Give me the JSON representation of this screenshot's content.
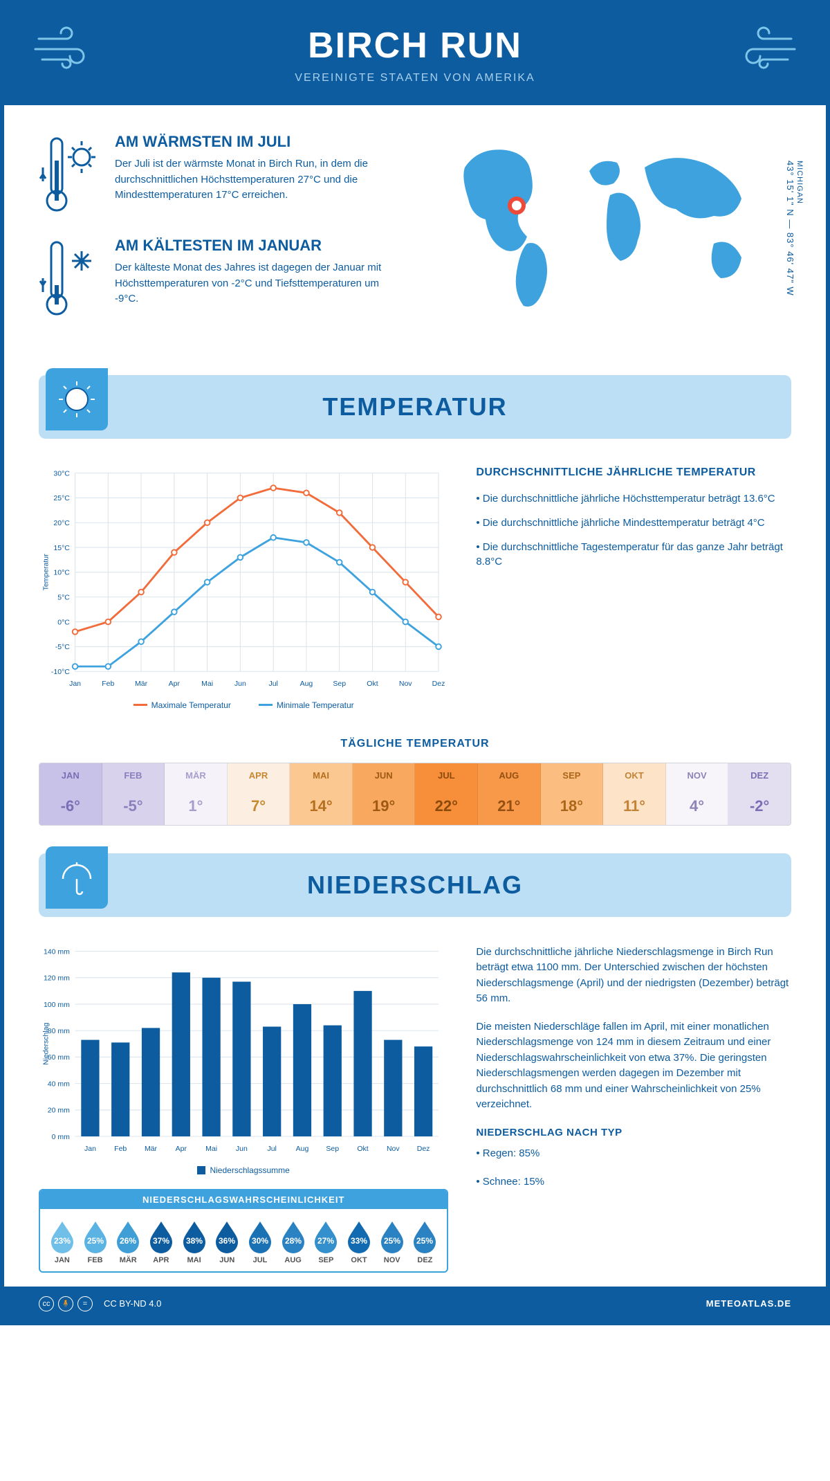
{
  "header": {
    "title": "BIRCH RUN",
    "subtitle": "VEREINIGTE STAATEN VON AMERIKA"
  },
  "intro": {
    "warm_title": "AM WÄRMSTEN IM JULI",
    "warm_text": "Der Juli ist der wärmste Monat in Birch Run, in dem die durchschnittlichen Höchsttemperaturen 27°C und die Mindesttemperaturen 17°C erreichen.",
    "cold_title": "AM KÄLTESTEN IM JANUAR",
    "cold_text": "Der kälteste Monat des Jahres ist dagegen der Januar mit Höchsttemperaturen von -2°C und Tiefsttemperaturen um -9°C.",
    "coords": "43° 15' 1\" N — 83° 46' 47\" W",
    "region": "MICHIGAN"
  },
  "months_short": [
    "Jan",
    "Feb",
    "Mär",
    "Apr",
    "Mai",
    "Jun",
    "Jul",
    "Aug",
    "Sep",
    "Okt",
    "Nov",
    "Dez"
  ],
  "months_upper": [
    "JAN",
    "FEB",
    "MÄR",
    "APR",
    "MAI",
    "JUN",
    "JUL",
    "AUG",
    "SEP",
    "OKT",
    "NOV",
    "DEZ"
  ],
  "temperature": {
    "banner": "TEMPERATUR",
    "side_title": "DURCHSCHNITTLICHE JÄHRLICHE TEMPERATUR",
    "bullet1": "• Die durchschnittliche jährliche Höchsttemperatur beträgt 13.6°C",
    "bullet2": "• Die durchschnittliche jährliche Mindesttemperatur beträgt 4°C",
    "bullet3": "• Die durchschnittliche Tagestemperatur für das ganze Jahr beträgt 8.8°C",
    "legend_max": "Maximale Temperatur",
    "legend_min": "Minimale Temperatur",
    "ylabel": "Temperatur",
    "ylim": [
      -10,
      30
    ],
    "ytick_step": 5,
    "max_series": [
      -2,
      0,
      6,
      14,
      20,
      25,
      27,
      26,
      22,
      15,
      8,
      1
    ],
    "min_series": [
      -9,
      -9,
      -4,
      2,
      8,
      13,
      17,
      16,
      12,
      6,
      0,
      -5
    ],
    "max_color": "#f26b3a",
    "min_color": "#3da2de",
    "grid_color": "#d8e2ea",
    "line_width": 3,
    "marker_size": 4
  },
  "daily_temp": {
    "title": "TÄGLICHE TEMPERATUR",
    "values": [
      "-6°",
      "-5°",
      "1°",
      "7°",
      "14°",
      "19°",
      "22°",
      "21°",
      "18°",
      "11°",
      "4°",
      "-2°"
    ],
    "bg_colors": [
      "#c8c2e8",
      "#d8d2ed",
      "#f5f2f9",
      "#fceee0",
      "#fbc891",
      "#f9a95f",
      "#f78f3a",
      "#f8994a",
      "#fbbd80",
      "#fde4c9",
      "#f7f5f9",
      "#e3def0"
    ],
    "txt_colors": [
      "#7a6fb5",
      "#8a80bd",
      "#a69ecc",
      "#c8882f",
      "#b56f1e",
      "#9e5a14",
      "#8b4a0c",
      "#945012",
      "#ab6619",
      "#c28335",
      "#8c84b8",
      "#7a6fb5"
    ]
  },
  "precip": {
    "banner": "NIEDERSCHLAG",
    "ylabel": "Niederschlag",
    "ylim": [
      0,
      140
    ],
    "ytick_step": 20,
    "values": [
      73,
      71,
      82,
      124,
      120,
      117,
      83,
      100,
      84,
      110,
      73,
      68
    ],
    "bar_color": "#0d5ca0",
    "grid_color": "#d8e2ea",
    "legend": "Niederschlagssumme",
    "para1": "Die durchschnittliche jährliche Niederschlagsmenge in Birch Run beträgt etwa 1100 mm. Der Unterschied zwischen der höchsten Niederschlagsmenge (April) und der niedrigsten (Dezember) beträgt 56 mm.",
    "para2": "Die meisten Niederschläge fallen im April, mit einer monatlichen Niederschlagsmenge von 124 mm in diesem Zeitraum und einer Niederschlagswahrscheinlichkeit von etwa 37%. Die geringsten Niederschlagsmengen werden dagegen im Dezember mit durchschnittlich 68 mm und einer Wahrscheinlichkeit von 25% verzeichnet.",
    "type_title": "NIEDERSCHLAG NACH TYP",
    "type_rain": "• Regen: 85%",
    "type_snow": "• Schnee: 15%",
    "prob_title": "NIEDERSCHLAGSWAHRSCHEINLICHKEIT",
    "prob_values": [
      "23%",
      "25%",
      "26%",
      "37%",
      "38%",
      "36%",
      "30%",
      "28%",
      "27%",
      "33%",
      "25%",
      "25%"
    ],
    "prob_colors": [
      "#6fbfe8",
      "#5ab3e2",
      "#3f9ed5",
      "#0d5ca0",
      "#0d5ca0",
      "#0d5ca0",
      "#1a72b5",
      "#2a82c2",
      "#3490cc",
      "#126bb0",
      "#2a82c2",
      "#2a82c2"
    ]
  },
  "footer": {
    "license": "CC BY-ND 4.0",
    "brand": "METEOATLAS.DE"
  },
  "colors": {
    "primary": "#0d5ca0",
    "light_blue": "#bcdff5",
    "mid_blue": "#3da2de"
  }
}
